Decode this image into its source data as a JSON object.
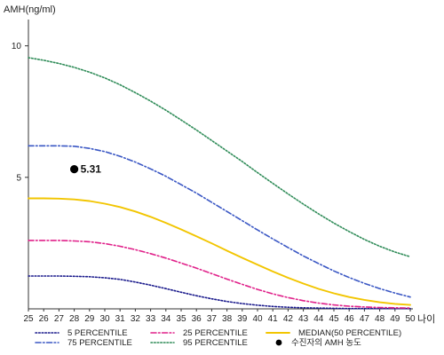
{
  "chart_data": {
    "type": "line",
    "title": "",
    "ylabel": "AMH(ng/ml)",
    "xlabel": "나이",
    "x": [
      25,
      26,
      27,
      28,
      29,
      30,
      31,
      32,
      33,
      34,
      35,
      36,
      37,
      38,
      39,
      40,
      41,
      42,
      43,
      44,
      45,
      46,
      47,
      48,
      49,
      50
    ],
    "xlim": [
      25,
      50
    ],
    "ylim": [
      0,
      11
    ],
    "y_ticks": [
      5,
      10
    ],
    "grid": false,
    "legend_placement": "bottom",
    "series": [
      {
        "name": "5 PERCENTILE",
        "color": "#1a1a8c",
        "style": "dotted",
        "values": [
          1.25,
          1.25,
          1.25,
          1.24,
          1.22,
          1.18,
          1.12,
          1.02,
          0.9,
          0.77,
          0.63,
          0.5,
          0.38,
          0.28,
          0.2,
          0.14,
          0.09,
          0.06,
          0.04,
          0.03,
          0.02,
          0.01,
          0.01,
          0.01,
          0.01,
          0.01
        ]
      },
      {
        "name": "25 PERCENTILE",
        "color": "#e0218a",
        "style": "dash-dot",
        "values": [
          2.6,
          2.6,
          2.6,
          2.58,
          2.55,
          2.48,
          2.38,
          2.25,
          2.1,
          1.93,
          1.74,
          1.55,
          1.34,
          1.13,
          0.93,
          0.74,
          0.57,
          0.43,
          0.31,
          0.22,
          0.15,
          0.1,
          0.07,
          0.05,
          0.04,
          0.03
        ]
      },
      {
        "name": "MEDIAN(50 PERCENTILE)",
        "color": "#f2c500",
        "style": "solid",
        "values": [
          4.2,
          4.2,
          4.19,
          4.16,
          4.1,
          4.0,
          3.87,
          3.7,
          3.5,
          3.27,
          3.02,
          2.76,
          2.49,
          2.21,
          1.94,
          1.68,
          1.42,
          1.18,
          0.96,
          0.76,
          0.59,
          0.45,
          0.34,
          0.25,
          0.19,
          0.15
        ]
      },
      {
        "name": "75 PERCENTILE",
        "color": "#3a57c4",
        "style": "dash-dot",
        "values": [
          6.2,
          6.2,
          6.2,
          6.18,
          6.1,
          5.98,
          5.8,
          5.58,
          5.32,
          5.04,
          4.72,
          4.4,
          4.05,
          3.7,
          3.35,
          3.0,
          2.66,
          2.33,
          2.01,
          1.72,
          1.44,
          1.19,
          0.97,
          0.77,
          0.6,
          0.45
        ]
      },
      {
        "name": "95 PERCENTILE",
        "color": "#2e8b57",
        "style": "dotted",
        "values": [
          9.55,
          9.45,
          9.33,
          9.18,
          9.0,
          8.78,
          8.52,
          8.22,
          7.9,
          7.55,
          7.18,
          6.8,
          6.4,
          6.0,
          5.6,
          5.18,
          4.77,
          4.37,
          3.98,
          3.61,
          3.26,
          2.94,
          2.64,
          2.38,
          2.16,
          1.98
        ]
      }
    ],
    "marker": {
      "label": "수진자의 AMH 농도",
      "x": 28,
      "y": 5.31,
      "value_label": "5.31",
      "color": "#000000"
    }
  }
}
